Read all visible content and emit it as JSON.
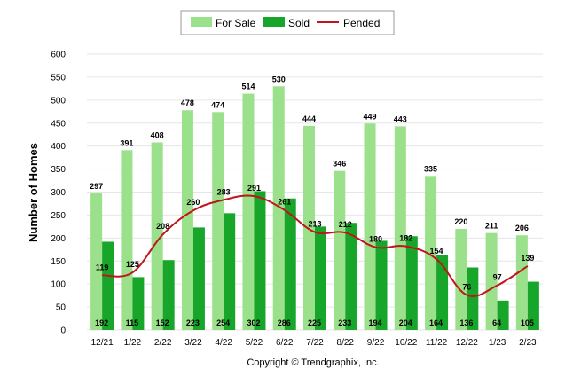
{
  "chart_data": {
    "type": "bar",
    "categories": [
      "12/21",
      "1/22",
      "2/22",
      "3/22",
      "4/22",
      "5/22",
      "6/22",
      "7/22",
      "8/22",
      "9/22",
      "10/22",
      "11/22",
      "12/22",
      "1/23",
      "2/23"
    ],
    "series": [
      {
        "name": "For Sale",
        "type": "bar",
        "color": "#9be08a",
        "values": [
          297,
          391,
          408,
          478,
          474,
          514,
          530,
          444,
          346,
          449,
          443,
          335,
          220,
          211,
          206
        ]
      },
      {
        "name": "Sold",
        "type": "bar",
        "color": "#17a62a",
        "values": [
          192,
          115,
          152,
          223,
          254,
          302,
          286,
          225,
          233,
          194,
          204,
          164,
          136,
          64,
          105
        ]
      },
      {
        "name": "Pended",
        "type": "line",
        "color": "#c0151b",
        "values": [
          119,
          125,
          208,
          260,
          283,
          291,
          261,
          213,
          212,
          180,
          182,
          154,
          76,
          97,
          139
        ]
      }
    ],
    "ylabel": "Number of Homes",
    "ylim": [
      0,
      600
    ],
    "yticks": [
      0,
      50,
      100,
      150,
      200,
      250,
      300,
      350,
      400,
      450,
      500,
      550,
      600
    ],
    "grid": true,
    "legend_position": "top-center"
  },
  "footer": "Copyright © Trendgraphix, Inc."
}
